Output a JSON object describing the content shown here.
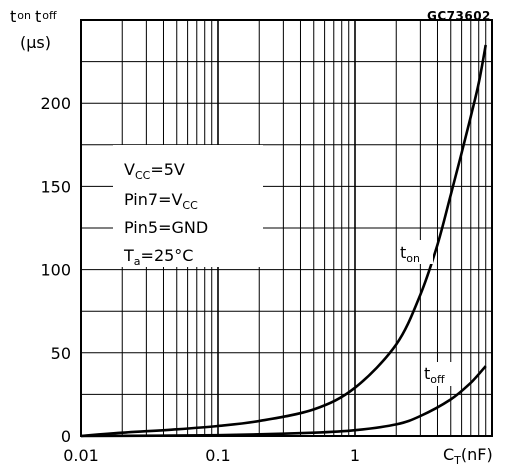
{
  "figure_code": "GC73602",
  "chart_data": {
    "type": "line",
    "y_label": {
      "t1": "t",
      "s1": "on",
      "t2": "t",
      "s2": "off",
      "unit": "(μs)"
    },
    "x_label": {
      "main": "C",
      "sub": "T",
      "unit": "(nF)"
    },
    "x_scale": "log",
    "xlim": [
      0.01,
      10
    ],
    "ylim": [
      0,
      250
    ],
    "x_ticks": [
      0.01,
      0.1,
      1
    ],
    "x_tick_labels": [
      "0.01",
      "0.1",
      "1"
    ],
    "y_ticks": [
      0,
      50,
      100,
      150,
      200
    ],
    "y_tick_labels": [
      "0",
      "50",
      "100",
      "150",
      "200"
    ],
    "grid": true,
    "series": [
      {
        "name": "t",
        "name_sub": "on",
        "x": [
          0.01,
          0.02,
          0.05,
          0.1,
          0.2,
          0.5,
          1,
          2,
          3,
          4,
          5,
          6,
          7,
          8,
          9
        ],
        "y": [
          0,
          2,
          4,
          6,
          9,
          16,
          29,
          55,
          85,
          115,
          145,
          170,
          192,
          212,
          235
        ]
      },
      {
        "name": "t",
        "name_sub": "off",
        "x": [
          0.01,
          0.1,
          0.5,
          1,
          2,
          3,
          5,
          7,
          9
        ],
        "y": [
          0,
          0.5,
          2,
          3.5,
          7,
          12,
          22,
          32,
          42
        ]
      }
    ],
    "annotation": [
      {
        "main": "V",
        "sub": "CC",
        "rest": "=5V"
      },
      {
        "main": "Pin7=V",
        "sub": "CC",
        "rest": ""
      },
      {
        "main": "Pin5=GND",
        "sub": "",
        "rest": ""
      },
      {
        "main": "T",
        "sub": "a",
        "rest": "=25°C"
      }
    ]
  }
}
